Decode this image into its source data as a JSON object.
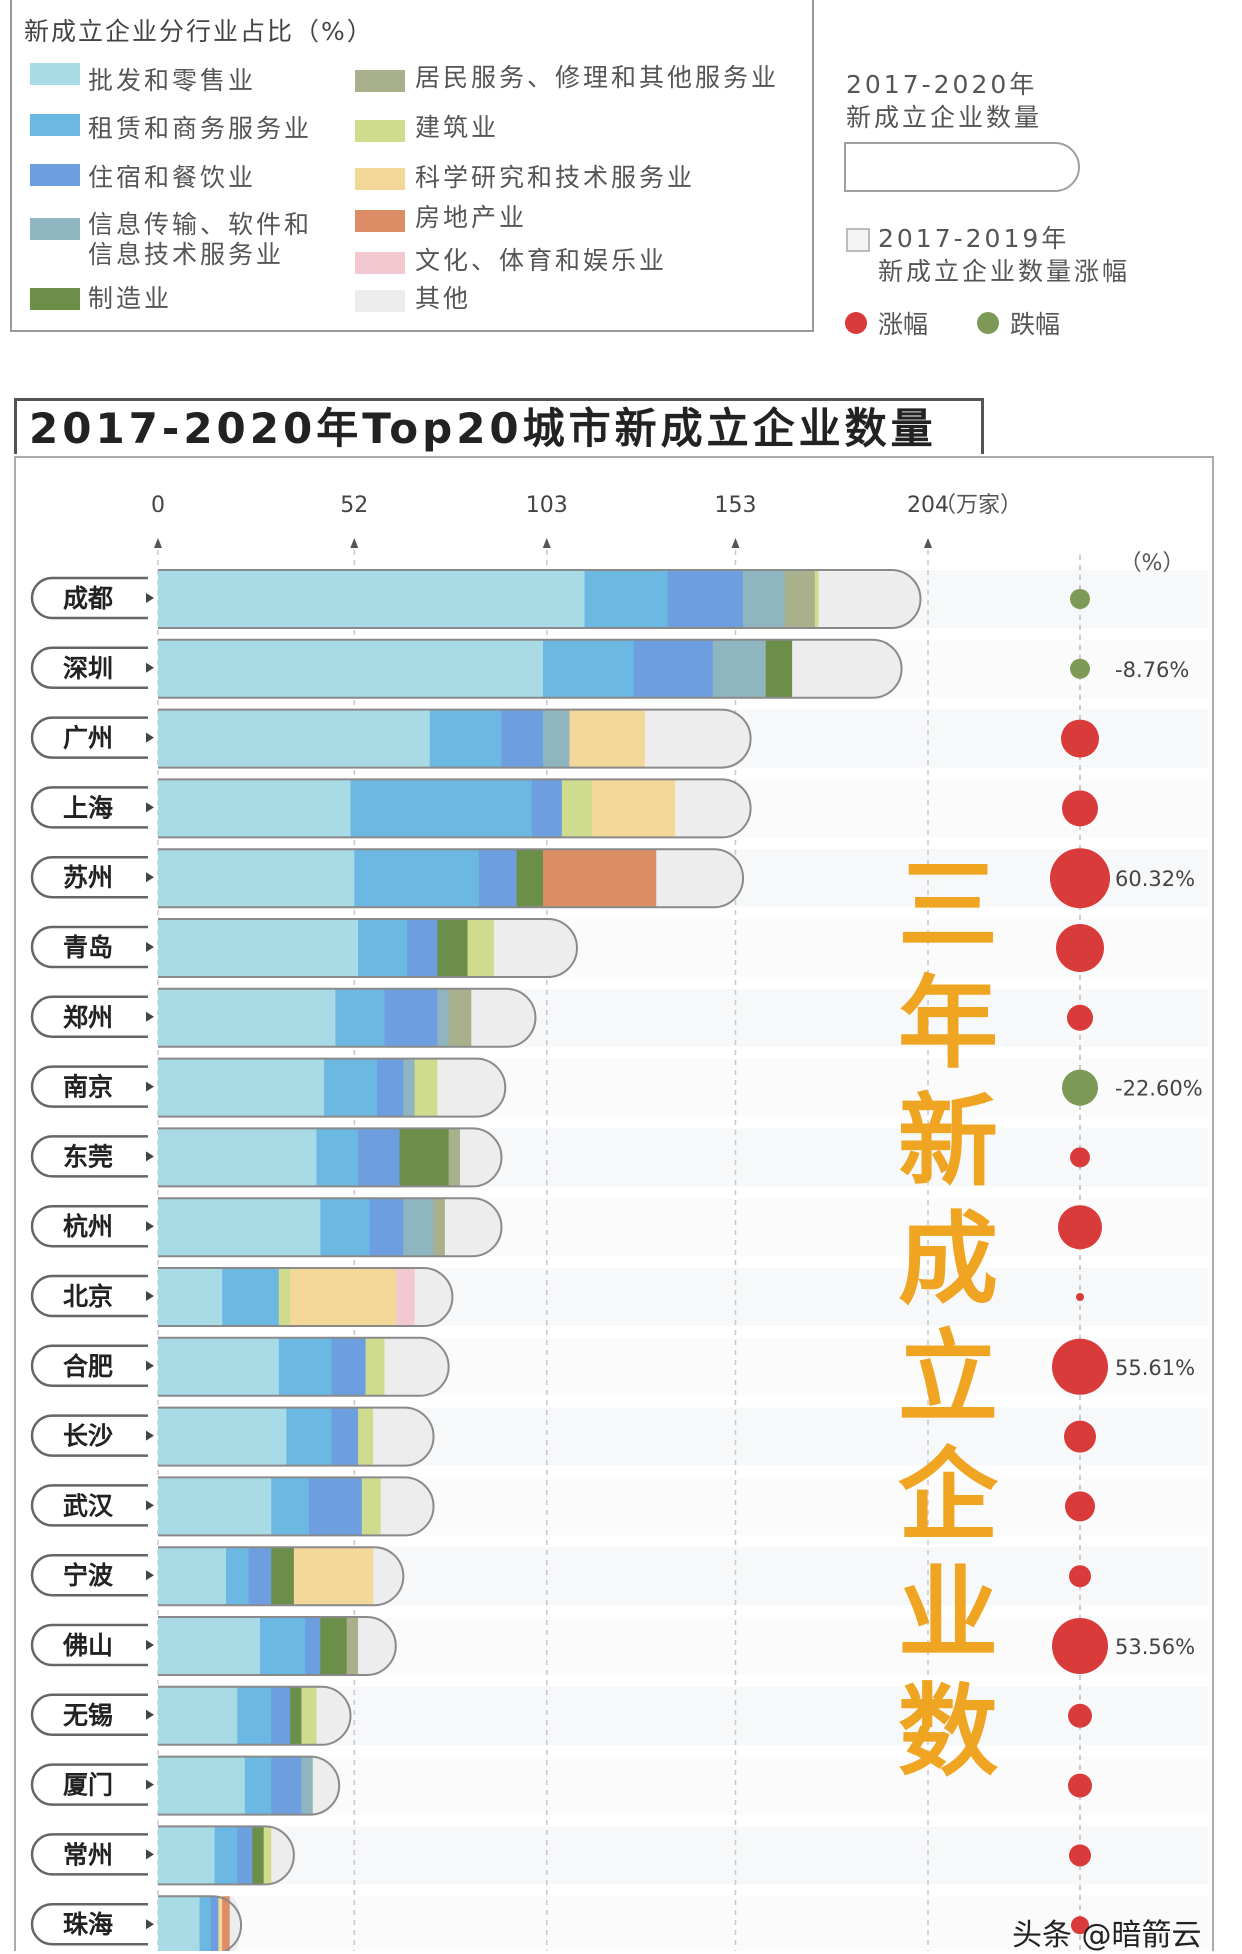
{
  "legend": {
    "title": "新成立企业分行业占比（%）",
    "items": [
      {
        "label": "批发和零售业",
        "color": "#a9dbe6"
      },
      {
        "label": "租赁和商务服务业",
        "color": "#6bb8e3"
      },
      {
        "label": "住宿和餐饮业",
        "color": "#6d9fe0"
      },
      {
        "label": "信息传输、软件和",
        "label2": "信息技术服务业",
        "color": "#8fb6c0"
      },
      {
        "label": "制造业",
        "color": "#6b8f48"
      },
      {
        "label": "居民服务、修理和其他服务业",
        "color": "#a8b08c"
      },
      {
        "label": "建筑业",
        "color": "#cfdc8e"
      },
      {
        "label": "科学研究和技术服务业",
        "color": "#f4d89a"
      },
      {
        "label": "房地产业",
        "color": "#dd8d66"
      },
      {
        "label": "文化、体育和娱乐业",
        "color": "#f2c9d1"
      },
      {
        "label": "其他",
        "color": "#ededed"
      }
    ]
  },
  "right_legend": {
    "title_line1": "2017-2020年",
    "title_line2": "新成立企业数量",
    "growth_line1": "2017-2019年",
    "growth_line2": "新成立企业数量涨幅",
    "rise_label": "涨幅",
    "fall_label": "跌幅",
    "rise_color": "#d93a3a",
    "fall_color": "#7c9a55"
  },
  "title": "2017-2020年Top20城市新成立企业数量",
  "overlay_text": "三年新成立企业数",
  "watermark": "头条 @暗箭云",
  "chart_data": {
    "type": "bar",
    "orientation": "horizontal",
    "stacked": true,
    "title": "2017-2020年Top20城市新成立企业数量",
    "xlabel": "（万家）",
    "x_ticks": [
      0,
      52,
      103,
      153,
      204
    ],
    "xlim": [
      0,
      204
    ],
    "growth_unit": "（%）",
    "series_names": [
      "批发和零售业",
      "租赁和商务服务业",
      "住宿和餐饮业",
      "信息传输、软件和信息技术服务业",
      "制造业",
      "居民服务、修理和其他服务业",
      "建筑业",
      "科学研究和技术服务业",
      "房地产业",
      "文化、体育和娱乐业",
      "其他"
    ],
    "categories": [
      "成都",
      "深圳",
      "广州",
      "上海",
      "苏州",
      "青岛",
      "郑州",
      "南京",
      "东莞",
      "杭州",
      "北京",
      "合肥",
      "长沙",
      "武汉",
      "宁波",
      "佛山",
      "无锡",
      "厦门",
      "常州",
      "珠海"
    ],
    "rows": [
      {
        "city": "成都",
        "total": 202,
        "segments": [
          [
            0,
            113
          ],
          [
            1,
            22
          ],
          [
            2,
            20
          ],
          [
            3,
            11
          ],
          [
            5,
            8
          ],
          [
            6,
            1
          ],
          [
            10,
            27
          ]
        ],
        "growth": "",
        "growth_dir": "fall",
        "growth_size": 10
      },
      {
        "city": "深圳",
        "total": 197,
        "segments": [
          [
            0,
            102
          ],
          [
            1,
            24
          ],
          [
            2,
            21
          ],
          [
            3,
            14
          ],
          [
            4,
            7
          ],
          [
            10,
            29
          ]
        ],
        "growth": "-8.76%",
        "growth_dir": "fall",
        "growth_size": 10
      },
      {
        "city": "广州",
        "total": 157,
        "segments": [
          [
            0,
            72
          ],
          [
            1,
            19
          ],
          [
            2,
            11
          ],
          [
            3,
            7
          ],
          [
            7,
            20
          ],
          [
            10,
            28
          ]
        ],
        "growth": "",
        "growth_dir": "rise",
        "growth_size": 19
      },
      {
        "city": "上海",
        "total": 157,
        "segments": [
          [
            0,
            51
          ],
          [
            1,
            48
          ],
          [
            2,
            8
          ],
          [
            6,
            8
          ],
          [
            7,
            22
          ],
          [
            10,
            20
          ]
        ],
        "growth": "",
        "growth_dir": "rise",
        "growth_size": 18
      },
      {
        "city": "苏州",
        "total": 155,
        "segments": [
          [
            0,
            52
          ],
          [
            1,
            33
          ],
          [
            2,
            10
          ],
          [
            4,
            7
          ],
          [
            8,
            30
          ],
          [
            10,
            23
          ]
        ],
        "growth": "60.32%",
        "growth_dir": "rise",
        "growth_size": 30
      },
      {
        "city": "青岛",
        "total": 111,
        "segments": [
          [
            0,
            53
          ],
          [
            1,
            13
          ],
          [
            2,
            8
          ],
          [
            4,
            8
          ],
          [
            6,
            7
          ],
          [
            10,
            22
          ]
        ],
        "growth": "",
        "growth_dir": "rise",
        "growth_size": 24
      },
      {
        "city": "郑州",
        "total": 100,
        "segments": [
          [
            0,
            47
          ],
          [
            1,
            13
          ],
          [
            2,
            14
          ],
          [
            3,
            3
          ],
          [
            5,
            6
          ],
          [
            10,
            17
          ]
        ],
        "growth": "",
        "growth_dir": "rise",
        "growth_size": 13
      },
      {
        "city": "南京",
        "total": 92,
        "segments": [
          [
            0,
            44
          ],
          [
            1,
            14
          ],
          [
            2,
            7
          ],
          [
            3,
            3
          ],
          [
            6,
            6
          ],
          [
            10,
            18
          ]
        ],
        "growth": "-22.60%",
        "growth_dir": "fall",
        "growth_size": 18
      },
      {
        "city": "东莞",
        "total": 91,
        "segments": [
          [
            0,
            42
          ],
          [
            1,
            11
          ],
          [
            2,
            11
          ],
          [
            4,
            13
          ],
          [
            5,
            3
          ],
          [
            10,
            11
          ]
        ],
        "growth": "",
        "growth_dir": "rise",
        "growth_size": 10
      },
      {
        "city": "杭州",
        "total": 91,
        "segments": [
          [
            0,
            43
          ],
          [
            1,
            13
          ],
          [
            2,
            9
          ],
          [
            3,
            8
          ],
          [
            5,
            3
          ],
          [
            10,
            15
          ]
        ],
        "growth": "",
        "growth_dir": "rise",
        "growth_size": 22
      },
      {
        "city": "北京",
        "total": 78,
        "segments": [
          [
            0,
            17
          ],
          [
            1,
            15
          ],
          [
            6,
            3
          ],
          [
            7,
            28
          ],
          [
            9,
            5
          ],
          [
            10,
            10
          ]
        ],
        "growth": "",
        "growth_dir": "rise",
        "growth_size": 4
      },
      {
        "city": "合肥",
        "total": 77,
        "segments": [
          [
            0,
            32
          ],
          [
            1,
            14
          ],
          [
            2,
            9
          ],
          [
            6,
            5
          ],
          [
            10,
            17
          ]
        ],
        "growth": "55.61%",
        "growth_dir": "rise",
        "growth_size": 28
      },
      {
        "city": "长沙",
        "total": 73,
        "segments": [
          [
            0,
            34
          ],
          [
            1,
            12
          ],
          [
            2,
            7
          ],
          [
            6,
            4
          ],
          [
            10,
            16
          ]
        ],
        "growth": "",
        "growth_dir": "rise",
        "growth_size": 16
      },
      {
        "city": "武汉",
        "total": 73,
        "segments": [
          [
            0,
            30
          ],
          [
            1,
            10
          ],
          [
            2,
            14
          ],
          [
            6,
            5
          ],
          [
            10,
            14
          ]
        ],
        "growth": "",
        "growth_dir": "rise",
        "growth_size": 15
      },
      {
        "city": "宁波",
        "total": 65,
        "segments": [
          [
            0,
            18
          ],
          [
            1,
            6
          ],
          [
            2,
            6
          ],
          [
            4,
            6
          ],
          [
            7,
            21
          ],
          [
            10,
            8
          ]
        ],
        "growth": "",
        "growth_dir": "rise",
        "growth_size": 11
      },
      {
        "city": "佛山",
        "total": 63,
        "segments": [
          [
            0,
            27
          ],
          [
            1,
            12
          ],
          [
            2,
            4
          ],
          [
            4,
            7
          ],
          [
            5,
            3
          ],
          [
            10,
            10
          ]
        ],
        "growth": "53.56%",
        "growth_dir": "rise",
        "growth_size": 28
      },
      {
        "city": "无锡",
        "total": 51,
        "segments": [
          [
            0,
            21
          ],
          [
            1,
            9
          ],
          [
            2,
            5
          ],
          [
            4,
            3
          ],
          [
            6,
            4
          ],
          [
            10,
            9
          ]
        ],
        "growth": "",
        "growth_dir": "rise",
        "growth_size": 12
      },
      {
        "city": "厦门",
        "total": 48,
        "segments": [
          [
            0,
            23
          ],
          [
            1,
            7
          ],
          [
            2,
            8
          ],
          [
            3,
            3
          ],
          [
            10,
            7
          ]
        ],
        "growth": "",
        "growth_dir": "rise",
        "growth_size": 12
      },
      {
        "city": "常州",
        "total": 36,
        "segments": [
          [
            0,
            15
          ],
          [
            1,
            6
          ],
          [
            2,
            4
          ],
          [
            4,
            3
          ],
          [
            6,
            2
          ],
          [
            10,
            6
          ]
        ],
        "growth": "",
        "growth_dir": "rise",
        "growth_size": 11
      },
      {
        "city": "珠海",
        "total": 22,
        "segments": [
          [
            0,
            11
          ],
          [
            1,
            3
          ],
          [
            2,
            2
          ],
          [
            7,
            1
          ],
          [
            8,
            2
          ],
          [
            10,
            3
          ]
        ],
        "growth": "",
        "growth_dir": "rise",
        "growth_size": 9
      }
    ]
  }
}
